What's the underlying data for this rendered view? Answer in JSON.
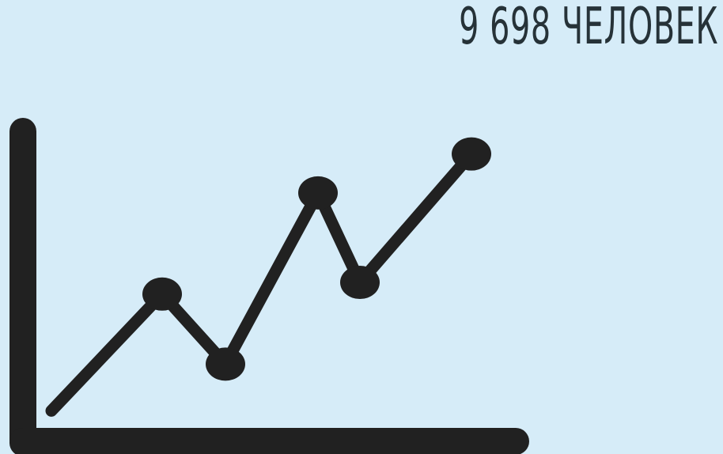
{
  "headline": "9 698 ЧЕЛОВЕК",
  "icon": {
    "name": "line-chart-icon",
    "color": "#212121",
    "points": [
      1,
      4,
      2.2,
      6.6,
      4.3,
      7.6
    ]
  },
  "colors": {
    "background": "#d6ecf8",
    "text": "#263238"
  }
}
